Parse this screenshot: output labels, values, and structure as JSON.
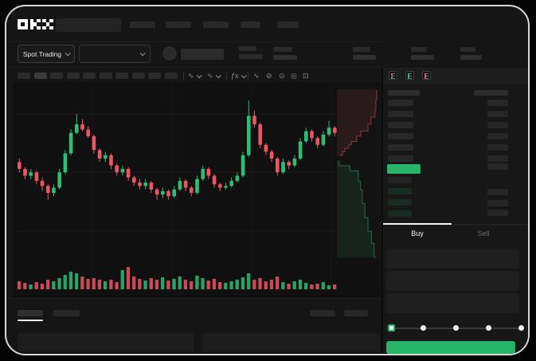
{
  "header": {
    "logo_text": "OKX"
  },
  "market_bar": {
    "market_type_label": "Spot Trading"
  },
  "toolbar": {
    "icons": [
      "candle-style-icon",
      "chart-type-icon",
      "indicators-icon",
      "wave-icon",
      "compare-icon",
      "camera-icon",
      "settings-icon",
      "fullscreen-icon"
    ]
  },
  "orderbook": {
    "layout_icons": [
      "book-both-icon",
      "book-bids-icon",
      "book-asks-icon"
    ],
    "ask_rows_visible": 6,
    "bid_rows_visible": 4,
    "last_price_highlight_color": "#27b46a"
  },
  "order_form": {
    "buy_tab_label": "Buy",
    "sell_tab_label": "Sell",
    "input_fields_visible": 3,
    "slider": {
      "steps": 5,
      "active_step": 0
    }
  },
  "colors": {
    "bullish_green": "#2dbd77",
    "bearish_red": "#ed5565",
    "button_green": "#27b46a",
    "frame_border": "#d7d7d7",
    "window_bg": "#151515"
  },
  "chart_data": {
    "type": "candlestick",
    "title": "",
    "axes_labeled": false,
    "price_scale_note": "relative 0-100 scale; no numeric axis labels are visible in the screenshot",
    "legend": "none",
    "grid": "faint horizontal/vertical lines",
    "candles_ohlc": [
      [
        58,
        60,
        52,
        54
      ],
      [
        54,
        55,
        48,
        50
      ],
      [
        50,
        54,
        48,
        52
      ],
      [
        52,
        53,
        45,
        47
      ],
      [
        47,
        49,
        41,
        44
      ],
      [
        44,
        45,
        36,
        40
      ],
      [
        40,
        45,
        38,
        43
      ],
      [
        43,
        54,
        42,
        52
      ],
      [
        52,
        65,
        51,
        63
      ],
      [
        63,
        77,
        62,
        75
      ],
      [
        75,
        86,
        74,
        80
      ],
      [
        80,
        83,
        76,
        77
      ],
      [
        77,
        79,
        72,
        73
      ],
      [
        73,
        74,
        63,
        65
      ],
      [
        65,
        66,
        58,
        60
      ],
      [
        60,
        64,
        58,
        62
      ],
      [
        62,
        63,
        54,
        56
      ],
      [
        56,
        57,
        50,
        52
      ],
      [
        52,
        56,
        50,
        54
      ],
      [
        54,
        55,
        47,
        49
      ],
      [
        49,
        50,
        44,
        46
      ],
      [
        46,
        48,
        42,
        44
      ],
      [
        44,
        48,
        42,
        46
      ],
      [
        46,
        47,
        40,
        42
      ],
      [
        42,
        43,
        36,
        39
      ],
      [
        39,
        43,
        37,
        41
      ],
      [
        41,
        42,
        36,
        38
      ],
      [
        38,
        44,
        37,
        42
      ],
      [
        42,
        49,
        41,
        47
      ],
      [
        47,
        48,
        41,
        43
      ],
      [
        43,
        44,
        38,
        40
      ],
      [
        40,
        50,
        39,
        48
      ],
      [
        48,
        56,
        47,
        54
      ],
      [
        54,
        55,
        48,
        50
      ],
      [
        50,
        51,
        43,
        45
      ],
      [
        45,
        46,
        41,
        43
      ],
      [
        43,
        46,
        42,
        44
      ],
      [
        44,
        49,
        43,
        47
      ],
      [
        47,
        52,
        46,
        50
      ],
      [
        50,
        64,
        49,
        62
      ],
      [
        62,
        94,
        61,
        85
      ],
      [
        85,
        88,
        78,
        80
      ],
      [
        80,
        81,
        66,
        68
      ],
      [
        68,
        69,
        62,
        64
      ],
      [
        64,
        65,
        58,
        60
      ],
      [
        60,
        61,
        50,
        52
      ],
      [
        52,
        60,
        51,
        58
      ],
      [
        58,
        59,
        54,
        56
      ],
      [
        56,
        62,
        55,
        60
      ],
      [
        60,
        72,
        59,
        70
      ],
      [
        70,
        78,
        69,
        76
      ],
      [
        76,
        77,
        70,
        72
      ],
      [
        72,
        73,
        66,
        68
      ],
      [
        68,
        76,
        67,
        74
      ],
      [
        74,
        82,
        73,
        78
      ],
      [
        78,
        79,
        73,
        75
      ]
    ],
    "volume": [
      10,
      8,
      6,
      9,
      7,
      12,
      10,
      14,
      18,
      22,
      20,
      16,
      13,
      14,
      12,
      10,
      12,
      9,
      24,
      28,
      16,
      13,
      11,
      14,
      12,
      15,
      11,
      13,
      16,
      12,
      10,
      17,
      14,
      11,
      13,
      9,
      8,
      10,
      12,
      15,
      20,
      12,
      14,
      10,
      12,
      16,
      9,
      7,
      10,
      12,
      8,
      6,
      7,
      9,
      5,
      6
    ],
    "depth_chart": {
      "orientation": "vertical, asks on top (red), bids below (green), depth grows from left edge",
      "asks_cumulative": [
        [
          0.02,
          0.91
        ],
        [
          0.08,
          0.89
        ],
        [
          0.14,
          0.87
        ],
        [
          0.18,
          0.78
        ],
        [
          0.22,
          0.71
        ],
        [
          0.26,
          0.55
        ],
        [
          0.29,
          0.45
        ],
        [
          0.32,
          0.33
        ],
        [
          0.34,
          0.27
        ],
        [
          0.36,
          0.18
        ],
        [
          0.38,
          0.13
        ],
        [
          0.4,
          0.06
        ]
      ],
      "bids_cumulative": [
        [
          0.43,
          0.05
        ],
        [
          0.46,
          0.3
        ],
        [
          0.49,
          0.49
        ],
        [
          0.55,
          0.54
        ],
        [
          0.6,
          0.58
        ],
        [
          0.68,
          0.64
        ],
        [
          0.76,
          0.71
        ],
        [
          0.84,
          0.79
        ],
        [
          0.91,
          0.85
        ],
        [
          0.99,
          0.89
        ]
      ]
    },
    "colors": {
      "bullish": "#2dbd77",
      "bearish": "#ed5565"
    }
  }
}
